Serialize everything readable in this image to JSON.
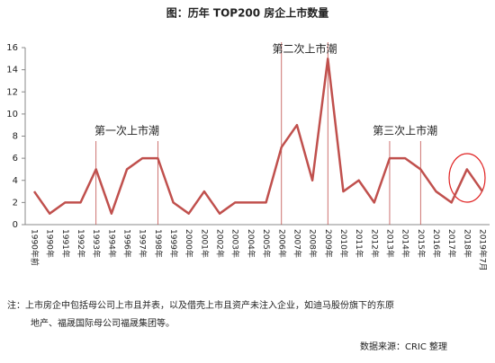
{
  "chart_data": {
    "type": "line",
    "title": "图：历年 TOP200 房企上市数量",
    "categories": [
      "1990年前",
      "1990年",
      "1991年",
      "1992年",
      "1993年",
      "1994年",
      "1996年",
      "1997年",
      "1998年",
      "1999年",
      "2000年",
      "2001年",
      "2002年",
      "2003年",
      "2004年",
      "2005年",
      "2006年",
      "2007年",
      "2008年",
      "2009年",
      "2010年",
      "2011年",
      "2012年",
      "2013年",
      "2014年",
      "2015年",
      "2016年",
      "2017年",
      "2018年",
      "2019年7月"
    ],
    "values": [
      3,
      1,
      2,
      2,
      5,
      1,
      5,
      6,
      6,
      2,
      1,
      3,
      1,
      2,
      2,
      2,
      7,
      9,
      4,
      15,
      3,
      4,
      2,
      6,
      6,
      5,
      3,
      2,
      5,
      3
    ],
    "color": "#c0504d",
    "ylim": [
      0,
      16
    ],
    "yticks": [
      0,
      2,
      4,
      6,
      8,
      10,
      12,
      14,
      16
    ],
    "annotations": [
      "第一次上市潮",
      "第二次上市潮",
      "第三次上市潮"
    ],
    "note": [
      "注：上市房企中包括母公司上市且并表，以及借壳上市且资产未注入企业，如迪马股份旗下的东原",
      "地产、福晟国际母公司福晟集团等。"
    ],
    "source": "数据来源：CRIC 整理"
  }
}
